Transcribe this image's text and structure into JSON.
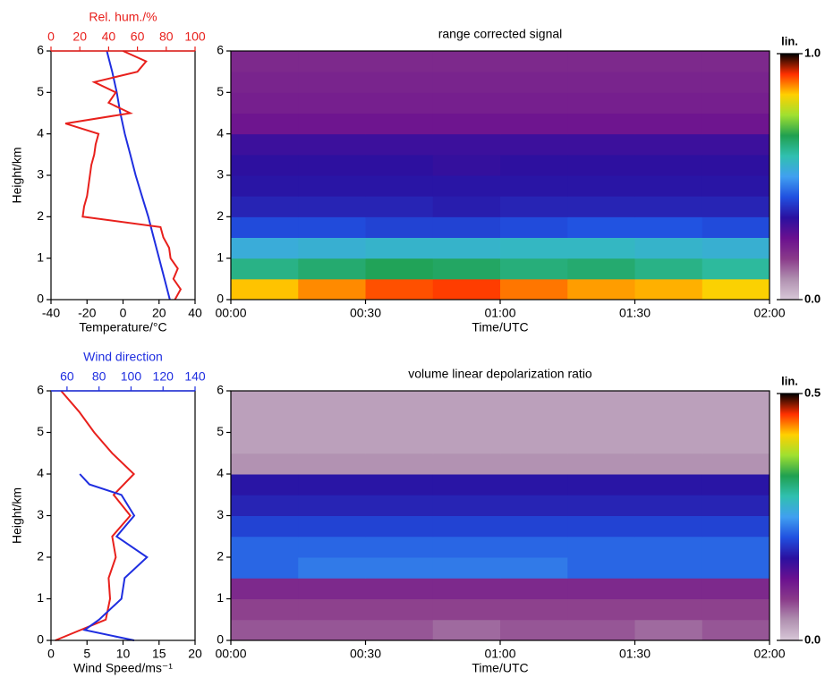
{
  "chart_data": [
    {
      "type": "profile",
      "xlabel": "Temperature/°C",
      "x2label": "Rel. hum./%",
      "ylabel": "Height/km",
      "xlim": [
        -40,
        40
      ],
      "xticks": [
        -40,
        -20,
        0,
        20,
        40
      ],
      "x2lim": [
        0,
        100
      ],
      "x2ticks": [
        0,
        20,
        40,
        60,
        80,
        100
      ],
      "x2color": "#e8201c",
      "ylim": [
        0,
        6
      ],
      "yticks": [
        0,
        1,
        2,
        3,
        4,
        5,
        6
      ],
      "series": [
        {
          "color": "#1f2ee0",
          "axis": "x",
          "y": [
            0,
            0.5,
            1,
            1.5,
            2,
            2.5,
            3,
            3.5,
            4,
            4.5,
            5,
            5.5,
            6
          ],
          "values": [
            26,
            23,
            20,
            17,
            14,
            10.5,
            7,
            4,
            1,
            -1.5,
            -3.5,
            -6,
            -9
          ]
        },
        {
          "color": "#e8201c",
          "axis": "x2",
          "y": [
            0,
            0.25,
            0.5,
            0.75,
            1,
            1.25,
            1.5,
            1.75,
            2,
            2.25,
            2.5,
            2.75,
            3,
            3.25,
            3.5,
            3.75,
            4,
            4.25,
            4.5,
            4.75,
            5,
            5.25,
            5.5,
            5.75,
            6
          ],
          "values": [
            86,
            90,
            85,
            88,
            83,
            82,
            78,
            76,
            22,
            23,
            25,
            26,
            27,
            28,
            30,
            31,
            33,
            10,
            55,
            40,
            45,
            30,
            60,
            66,
            50
          ]
        }
      ]
    },
    {
      "type": "heatmap",
      "title": "range corrected signal",
      "xlabel": "Time/UTC",
      "xlim": [
        0,
        120
      ],
      "xticks": [
        {
          "value": 0,
          "label": "00:00"
        },
        {
          "value": 30,
          "label": "00:30"
        },
        {
          "value": 60,
          "label": "01:00"
        },
        {
          "value": 90,
          "label": "01:30"
        },
        {
          "value": 120,
          "label": "02:00"
        }
      ],
      "ylim": [
        0,
        6
      ],
      "yticks": [
        0,
        1,
        2,
        3,
        4,
        5,
        6
      ],
      "x": [
        0,
        15,
        30,
        45,
        60,
        75,
        90,
        105,
        120
      ],
      "y": [
        0,
        0.5,
        1,
        1.5,
        2,
        2.5,
        3,
        3.5,
        4,
        4.5,
        5,
        5.5,
        6
      ],
      "z": [
        [
          0.84,
          0.87,
          0.9,
          0.91,
          0.88,
          0.86,
          0.85,
          0.83
        ],
        [
          0.62,
          0.64,
          0.66,
          0.65,
          0.63,
          0.64,
          0.62,
          0.6
        ],
        [
          0.53,
          0.54,
          0.55,
          0.55,
          0.56,
          0.56,
          0.55,
          0.54
        ],
        [
          0.41,
          0.41,
          0.4,
          0.4,
          0.41,
          0.42,
          0.42,
          0.41
        ],
        [
          0.36,
          0.36,
          0.36,
          0.35,
          0.36,
          0.36,
          0.36,
          0.36
        ],
        [
          0.34,
          0.34,
          0.34,
          0.34,
          0.34,
          0.34,
          0.34,
          0.34
        ],
        [
          0.33,
          0.33,
          0.33,
          0.32,
          0.33,
          0.33,
          0.33,
          0.33
        ],
        [
          0.31,
          0.31,
          0.31,
          0.31,
          0.31,
          0.31,
          0.31,
          0.31
        ],
        [
          0.24,
          0.24,
          0.24,
          0.24,
          0.24,
          0.24,
          0.24,
          0.24
        ],
        [
          0.22,
          0.22,
          0.22,
          0.22,
          0.22,
          0.22,
          0.22,
          0.22
        ],
        [
          0.21,
          0.21,
          0.21,
          0.21,
          0.21,
          0.21,
          0.21,
          0.21
        ],
        [
          0.2,
          0.2,
          0.2,
          0.2,
          0.2,
          0.2,
          0.2,
          0.2
        ]
      ],
      "zlim": [
        0,
        1
      ],
      "zticks": [
        {
          "value": 0,
          "label": "0.0"
        },
        {
          "value": 1,
          "label": "1.0"
        }
      ],
      "zlabel": "lin.",
      "colormap": [
        "#d8c8d8",
        "#b090b0",
        "#8a3a8a",
        "#6a1090",
        "#2a10a0",
        "#2050e0",
        "#40a0f0",
        "#30c0b0",
        "#20a050",
        "#a0e030",
        "#ffd000",
        "#ff3000",
        "#000000"
      ]
    },
    {
      "type": "profile",
      "xlabel": "Wind Speed/ms⁻¹",
      "x2label": "Wind direction",
      "ylabel": "Height/km",
      "xlim": [
        0,
        20
      ],
      "xticks": [
        0,
        5,
        10,
        15,
        20
      ],
      "x2lim": [
        50,
        140
      ],
      "x2ticks": [
        60,
        80,
        100,
        120,
        140
      ],
      "x2color": "#1f2ee0",
      "ylim": [
        0,
        6
      ],
      "yticks": [
        0,
        1,
        2,
        3,
        4,
        5,
        6
      ],
      "series": [
        {
          "color": "#e8201c",
          "axis": "x",
          "y": [
            0,
            0.5,
            1,
            1.5,
            2,
            2.5,
            3,
            3.5,
            4,
            4.5,
            5,
            5.5,
            6
          ],
          "values": [
            0.6,
            7.6,
            8.2,
            8,
            9,
            8.5,
            11,
            8.7,
            11.5,
            8.5,
            6,
            3.9,
            1.4
          ]
        },
        {
          "color": "#1f2ee0",
          "axis": "x2",
          "y": [
            0,
            0.25,
            0.5,
            1,
            1.5,
            2,
            2.5,
            3,
            3.5,
            3.75,
            4
          ],
          "values": [
            102,
            71,
            80,
            94,
            96,
            110,
            91,
            102,
            94,
            74,
            68
          ]
        }
      ]
    },
    {
      "type": "heatmap",
      "title": "volume linear depolarization ratio",
      "xlabel": "Time/UTC",
      "xlim": [
        0,
        120
      ],
      "xticks": [
        {
          "value": 0,
          "label": "00:00"
        },
        {
          "value": 30,
          "label": "00:30"
        },
        {
          "value": 60,
          "label": "01:00"
        },
        {
          "value": 90,
          "label": "01:30"
        },
        {
          "value": 120,
          "label": "02:00"
        }
      ],
      "ylim": [
        0,
        6
      ],
      "yticks": [
        0,
        1,
        2,
        3,
        4,
        5,
        6
      ],
      "x": [
        0,
        15,
        30,
        45,
        60,
        75,
        90,
        105,
        120
      ],
      "y": [
        0,
        0.5,
        1,
        1.5,
        2,
        2.5,
        3,
        3.5,
        4,
        4.5,
        5,
        5.5,
        6
      ],
      "z": [
        [
          0.07,
          0.07,
          0.07,
          0.06,
          0.07,
          0.07,
          0.06,
          0.07
        ],
        [
          0.08,
          0.08,
          0.08,
          0.08,
          0.08,
          0.08,
          0.08,
          0.08
        ],
        [
          0.1,
          0.1,
          0.1,
          0.1,
          0.1,
          0.1,
          0.1,
          0.1
        ],
        [
          0.22,
          0.23,
          0.23,
          0.23,
          0.23,
          0.22,
          0.22,
          0.22
        ],
        [
          0.22,
          0.22,
          0.22,
          0.22,
          0.22,
          0.22,
          0.22,
          0.22
        ],
        [
          0.2,
          0.2,
          0.2,
          0.2,
          0.2,
          0.2,
          0.2,
          0.2
        ],
        [
          0.18,
          0.18,
          0.18,
          0.18,
          0.18,
          0.18,
          0.18,
          0.18
        ],
        [
          0.17,
          0.17,
          0.17,
          0.17,
          0.17,
          0.17,
          0.17,
          0.17
        ],
        [
          0.04,
          0.04,
          0.04,
          0.04,
          0.04,
          0.04,
          0.04,
          0.04
        ],
        [
          0.03,
          0.03,
          0.03,
          0.03,
          0.03,
          0.03,
          0.03,
          0.03
        ],
        [
          0.03,
          0.03,
          0.03,
          0.03,
          0.03,
          0.03,
          0.03,
          0.03
        ],
        [
          0.03,
          0.03,
          0.03,
          0.03,
          0.03,
          0.03,
          0.03,
          0.03
        ]
      ],
      "zlim": [
        0,
        0.5
      ],
      "zticks": [
        {
          "value": 0,
          "label": "0.0"
        },
        {
          "value": 0.5,
          "label": "0.5"
        }
      ],
      "zlabel": "lin.",
      "colormap": [
        "#d8c8d8",
        "#b090b0",
        "#8a3a8a",
        "#6a1090",
        "#2a10a0",
        "#2050e0",
        "#40a0f0",
        "#30c0b0",
        "#20a050",
        "#a0e030",
        "#ffd000",
        "#ff3000",
        "#000000"
      ]
    }
  ]
}
